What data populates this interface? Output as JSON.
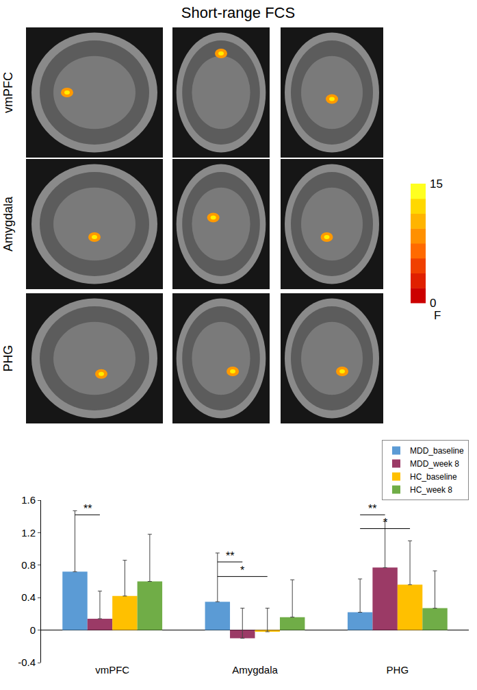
{
  "title": "Short-range FCS",
  "panels": {
    "rows": [
      "vmPFC",
      "Amygdala",
      "PHG"
    ],
    "colorbar": {
      "title": "F",
      "range": [
        0,
        15
      ],
      "ticks": [
        0,
        15
      ]
    }
  },
  "chart_data": {
    "type": "bar",
    "categories": [
      "vmPFC",
      "Amygdala",
      "PHG"
    ],
    "series": [
      {
        "name": "MDD_baseline",
        "color": "#5b9bd5",
        "values": [
          0.72,
          0.35,
          0.22
        ],
        "errors": [
          0.75,
          0.6,
          0.41
        ]
      },
      {
        "name": "MDD_week 8",
        "color": "#9b3a66",
        "values": [
          0.14,
          -0.1,
          0.77
        ],
        "errors": [
          0.34,
          0.37,
          0.57
        ]
      },
      {
        "name": "HC_baseline",
        "color": "#ffc000",
        "values": [
          0.42,
          -0.02,
          0.56
        ],
        "errors": [
          0.44,
          0.29,
          0.54
        ]
      },
      {
        "name": "HC_week 8",
        "color": "#70ad47",
        "values": [
          0.6,
          0.16,
          0.27
        ],
        "errors": [
          0.58,
          0.46,
          0.46
        ]
      }
    ],
    "ylim": [
      -0.4,
      1.6
    ],
    "yticks": [
      -0.4,
      0,
      0.4,
      0.8,
      1.2,
      1.6
    ],
    "grid": false,
    "legend": "top right",
    "annotations": [
      {
        "text": "**",
        "category": "vmPFC",
        "from": "MDD_baseline",
        "to": "MDD_week 8",
        "y": 1.42
      },
      {
        "text": "**",
        "category": "Amygdala",
        "from": "MDD_baseline",
        "to": "MDD_week 8",
        "y": 0.84
      },
      {
        "text": "*",
        "category": "Amygdala",
        "from": "MDD_baseline",
        "to": "HC_baseline",
        "y": 0.66
      },
      {
        "text": "**",
        "category": "PHG",
        "from": "MDD_baseline",
        "to": "MDD_week 8",
        "y": 1.42
      },
      {
        "text": "*",
        "category": "PHG",
        "from": "MDD_baseline",
        "to": "HC_baseline",
        "y": 1.25
      }
    ]
  }
}
